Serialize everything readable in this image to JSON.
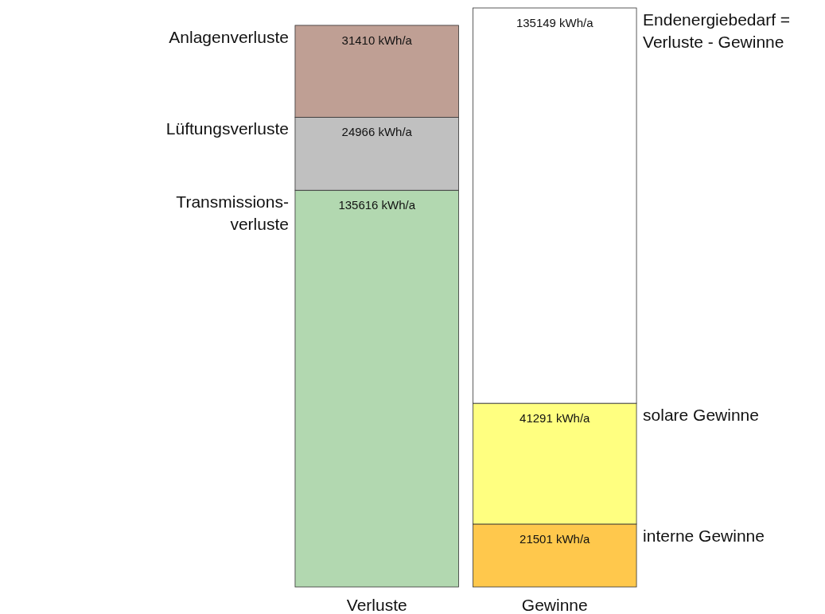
{
  "chart_data": {
    "type": "bar",
    "stacked": true,
    "categories": [
      "Verluste",
      "Gewinne"
    ],
    "series": [
      {
        "name": "Transmissions-\nverluste",
        "color": "#b2d8b0",
        "values": [
          135616,
          null
        ],
        "value_labels": [
          "135616 kWh/a",
          null
        ]
      },
      {
        "name": "Lüftungsverluste",
        "color": "#c0c0c0",
        "values": [
          24966,
          null
        ],
        "value_labels": [
          "24966 kWh/a",
          null
        ]
      },
      {
        "name": "Anlagenverluste",
        "color": "#bf9f94",
        "values": [
          31410,
          null
        ],
        "value_labels": [
          "31410 kWh/a",
          null
        ]
      },
      {
        "name": "interne Gewinne",
        "color": "#ffc84c",
        "values": [
          null,
          21501
        ],
        "value_labels": [
          null,
          "21501 kWh/a"
        ]
      },
      {
        "name": "solare Gewinne",
        "color": "#ffff80",
        "values": [
          null,
          41291
        ],
        "value_labels": [
          null,
          "41291 kWh/a"
        ]
      },
      {
        "name": "Endenergiebedarf =\nVerluste - Gewinne",
        "color": "#ffffff",
        "values": [
          null,
          135149
        ],
        "value_labels": [
          null,
          "135149 kWh/a"
        ]
      }
    ]
  }
}
